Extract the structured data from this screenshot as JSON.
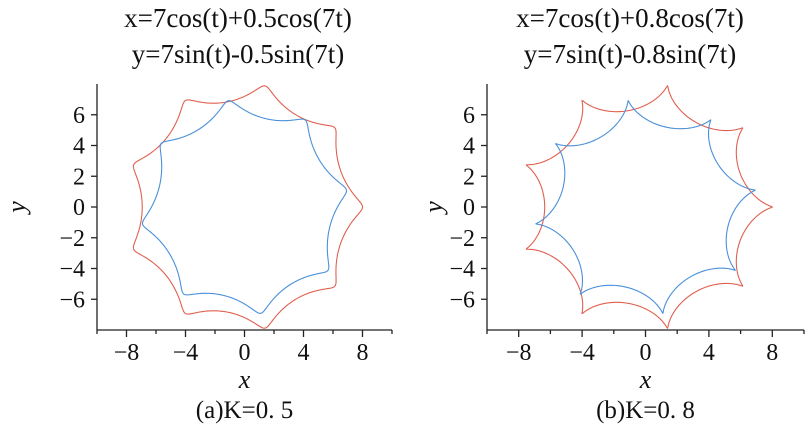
{
  "colors": {
    "outer": "#e0604f",
    "inner": "#4a90d9",
    "axis": "#222222"
  },
  "chart_data": [
    {
      "type": "line",
      "title_lines": [
        "x=7cos(t)+0.5cos(7t)",
        "y=7sin(t)-0.5sin(7t)"
      ],
      "xlabel": "x",
      "ylabel": "y",
      "caption": "(a)K=0. 5",
      "xlim": [
        -10,
        10
      ],
      "ylim": [
        -8,
        8
      ],
      "xticks": [
        -8,
        -4,
        0,
        4,
        8
      ],
      "yticks": [
        -6,
        -4,
        -2,
        0,
        2,
        4,
        6
      ],
      "grid": false,
      "series": [
        {
          "type": "parametric",
          "a": 7,
          "b": 8,
          "k": 0.5,
          "n": 7,
          "rotation_deg": 0,
          "color_key": "outer"
        },
        {
          "type": "parametric",
          "a": 6,
          "b": 7,
          "k": 0.5,
          "n": 6,
          "rotation_deg": 99,
          "color_key": "inner"
        }
      ]
    },
    {
      "type": "line",
      "title_lines": [
        "x=7cos(t)+0.8cos(7t)",
        "y=7sin(t)-0.8sin(7t)"
      ],
      "xlabel": "x",
      "ylabel": "y",
      "caption": "(b)K=0. 8",
      "xlim": [
        -10,
        10
      ],
      "ylim": [
        -8,
        8
      ],
      "xticks": [
        -8,
        -4,
        0,
        4,
        8
      ],
      "yticks": [
        -6,
        -4,
        -2,
        0,
        2,
        4,
        6
      ],
      "grid": false,
      "series": [
        {
          "type": "parametric",
          "a": 7,
          "b": 8,
          "k": 0.8,
          "n": 7,
          "rotation_deg": 0,
          "color_key": "outer"
        },
        {
          "type": "parametric",
          "a": 6,
          "b": 7,
          "k": 0.8,
          "n": 6,
          "rotation_deg": 99,
          "color_key": "inner"
        }
      ]
    }
  ]
}
